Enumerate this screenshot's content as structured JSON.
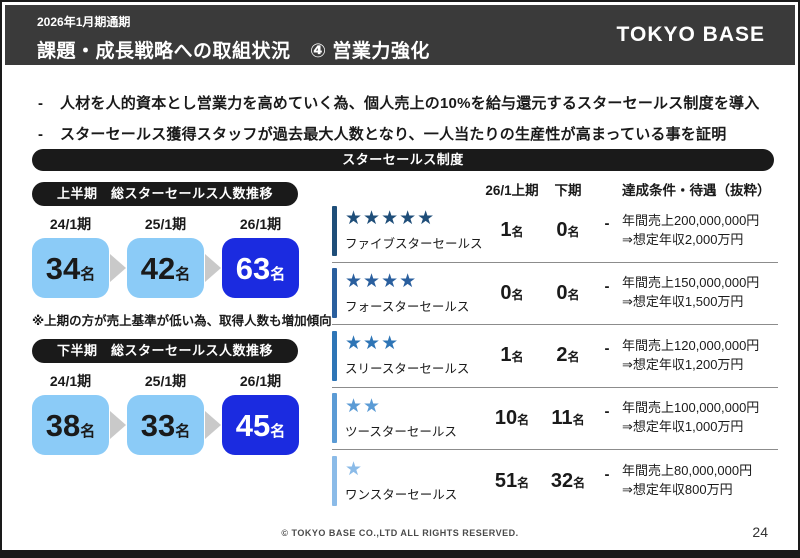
{
  "header": {
    "badge": "2026年1月期通期",
    "title": "課題・成長戦略への取組状況　④ 営業力強化",
    "logo": "TOKYO BASE"
  },
  "bullets": {
    "marker": "-",
    "items": [
      "人材を人的資本とし営業力を高めていく為、個人売上の10%を給与還元するスターセールス制度を導入",
      "スターセールス獲得スタッフが過去最大人数となり、一人当たりの生産性が高まっている事を証明"
    ]
  },
  "section_banner": "スターセールス制度",
  "left": {
    "first_half": {
      "title": "上半期　総スターセールス人数推移",
      "periods": [
        {
          "label": "24/1期",
          "count": "34",
          "unit": "名"
        },
        {
          "label": "25/1期",
          "count": "42",
          "unit": "名"
        },
        {
          "label": "26/1期",
          "count": "63",
          "unit": "名"
        }
      ]
    },
    "note": "※上期の方が売上基準が低い為、取得人数も増加傾向",
    "second_half": {
      "title": "下半期　総スターセールス人数推移",
      "periods": [
        {
          "label": "24/1期",
          "count": "38",
          "unit": "名"
        },
        {
          "label": "25/1期",
          "count": "33",
          "unit": "名"
        },
        {
          "label": "26/1期",
          "count": "45",
          "unit": "名"
        }
      ]
    }
  },
  "table": {
    "columns": {
      "first_half": "26/1上期",
      "second_half": "下期",
      "conditions": "達成条件・待遇（抜粋）"
    },
    "rows": [
      {
        "stars": "★★★★★",
        "color": "#1F4E79",
        "name": "ファイブスターセールス",
        "first_half": "1",
        "second_half": "0",
        "unit": "名",
        "dash": "-",
        "condition": "年間売上200,000,000円",
        "benefit": "⇒想定年収2,000万円"
      },
      {
        "stars": "★★★★",
        "color": "#2A5F9E",
        "name": "フォースターセールス",
        "first_half": "0",
        "second_half": "0",
        "unit": "名",
        "dash": "-",
        "condition": "年間売上150,000,000円",
        "benefit": "⇒想定年収1,500万円"
      },
      {
        "stars": "★★★",
        "color": "#2E75B6",
        "name": "スリースターセールス",
        "first_half": "1",
        "second_half": "2",
        "unit": "名",
        "dash": "-",
        "condition": "年間売上120,000,000円",
        "benefit": "⇒想定年収1,200万円"
      },
      {
        "stars": "★★",
        "color": "#5B9BD5",
        "name": "ツースターセールス",
        "first_half": "10",
        "second_half": "11",
        "unit": "名",
        "dash": "-",
        "condition": "年間売上100,000,000円",
        "benefit": "⇒想定年収1,000万円"
      },
      {
        "stars": "★",
        "color": "#8BBBE8",
        "name": "ワンスターセールス",
        "first_half": "51",
        "second_half": "32",
        "unit": "名",
        "dash": "-",
        "condition": "年間売上80,000,000円",
        "benefit": "⇒想定年収800万円"
      }
    ]
  },
  "footer": {
    "copyright": "© TOKYO BASE CO.,LTD  ALL RIGHTS RESERVED.",
    "page": "24"
  },
  "colors": {
    "header_bg": "#3A3A3A",
    "black": "#1A1A1A",
    "box_light": "#8BCBF7",
    "box_dark": "#1B2BE0",
    "arrow": "#C9C9C9"
  }
}
